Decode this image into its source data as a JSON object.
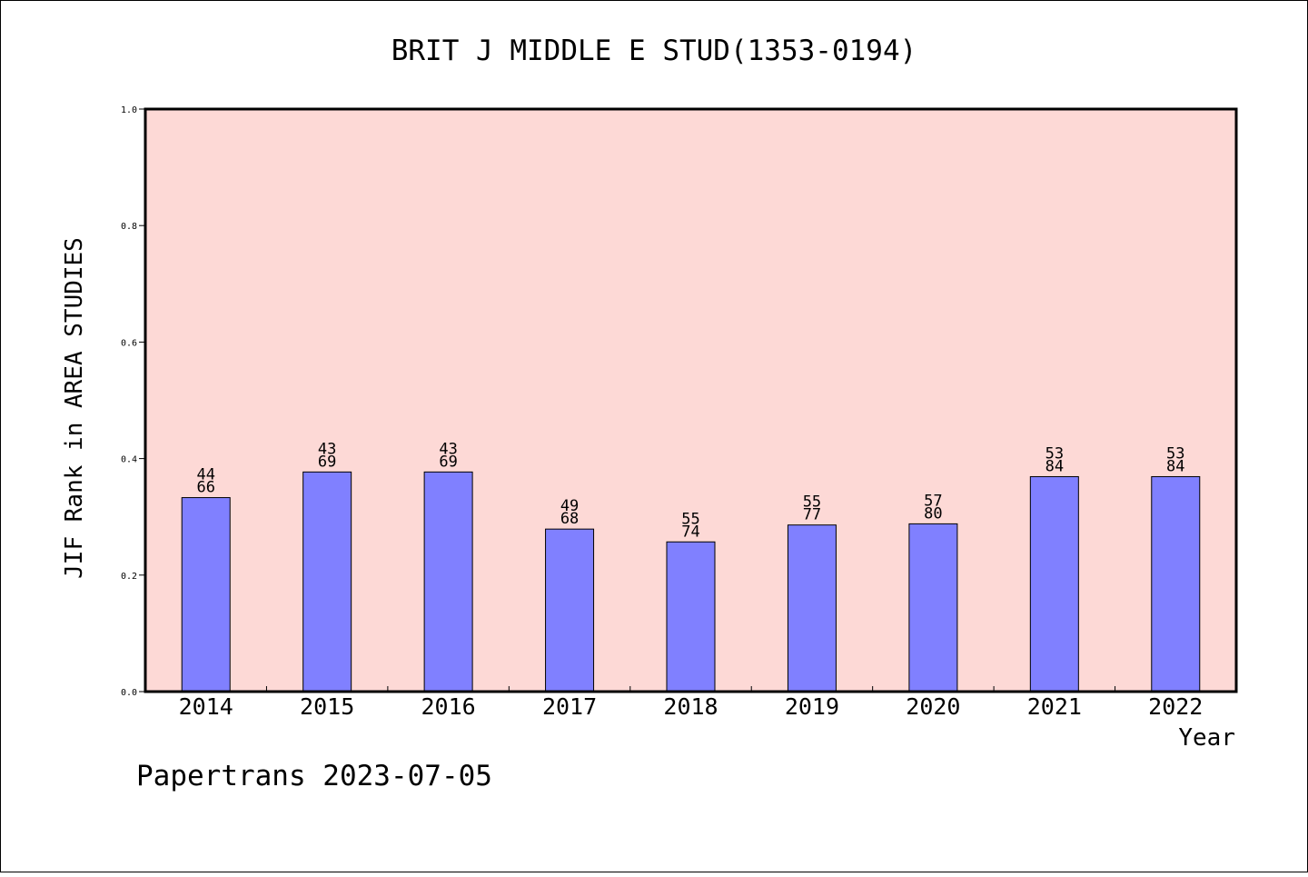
{
  "chart_data": {
    "type": "bar",
    "title": "BRIT J MIDDLE E STUD(1353-0194)",
    "ylabel": "JIF Rank in AREA STUDIES",
    "xlabel": "Year",
    "footer": "Papertrans 2023-07-05",
    "ylim": [
      0,
      1.0
    ],
    "yticks": [
      "0.0",
      "0.2",
      "0.4",
      "0.6",
      "0.8",
      "1.0"
    ],
    "categories": [
      "2014",
      "2015",
      "2016",
      "2017",
      "2018",
      "2019",
      "2020",
      "2021",
      "2022"
    ],
    "rank": [
      "44",
      "43",
      "43",
      "49",
      "55",
      "55",
      "57",
      "53",
      "53"
    ],
    "total": [
      "66",
      "69",
      "69",
      "68",
      "74",
      "77",
      "80",
      "84",
      "84"
    ],
    "values": [
      0.333,
      0.377,
      0.377,
      0.279,
      0.257,
      0.286,
      0.288,
      0.369,
      0.369
    ],
    "grid": false,
    "legend": "none",
    "colors": {
      "plot_background": "#fdd9d6",
      "bar_fill": "#8080ff",
      "bar_stroke": "#000000",
      "frame": "#000000",
      "page_background": "#ffffff"
    }
  }
}
